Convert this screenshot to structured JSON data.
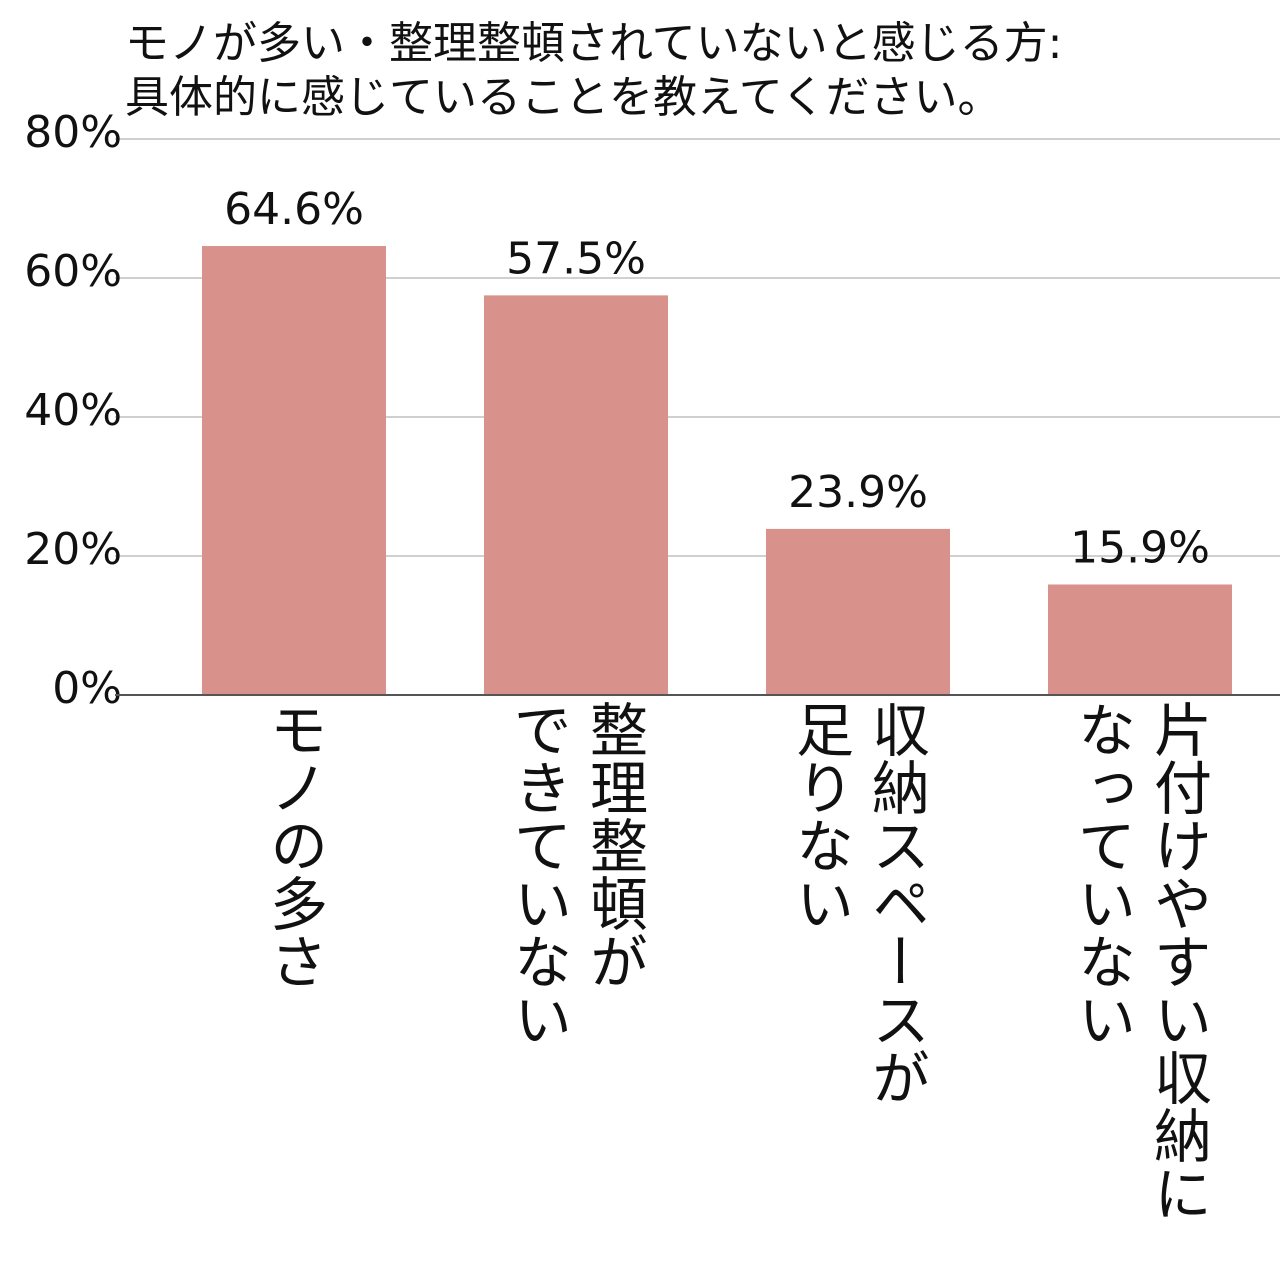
{
  "chart_data": {
    "type": "bar",
    "title": [
      "モノが多い・整理整頓されていないと感じる方:",
      "具体的に感じていることを教えてください。"
    ],
    "categories": [
      [
        "モノの多さ"
      ],
      [
        "整理整頓が",
        "できていない"
      ],
      [
        "収納スペースが",
        "足りない"
      ],
      [
        "片付けやすい収納に",
        "なっていない"
      ]
    ],
    "values": [
      64.6,
      57.5,
      23.9,
      15.9
    ],
    "value_labels": [
      "64.6%",
      "57.5%",
      "23.9%",
      "15.9%"
    ],
    "color": "#d9918b",
    "ylim": [
      0,
      80
    ],
    "yticks": [
      {
        "value": 0,
        "label": "0%"
      },
      {
        "value": 20,
        "label": "20%"
      },
      {
        "value": 40,
        "label": "40%"
      },
      {
        "value": 60,
        "label": "60%"
      },
      {
        "value": 80,
        "label": "80%"
      }
    ],
    "grid": true
  }
}
